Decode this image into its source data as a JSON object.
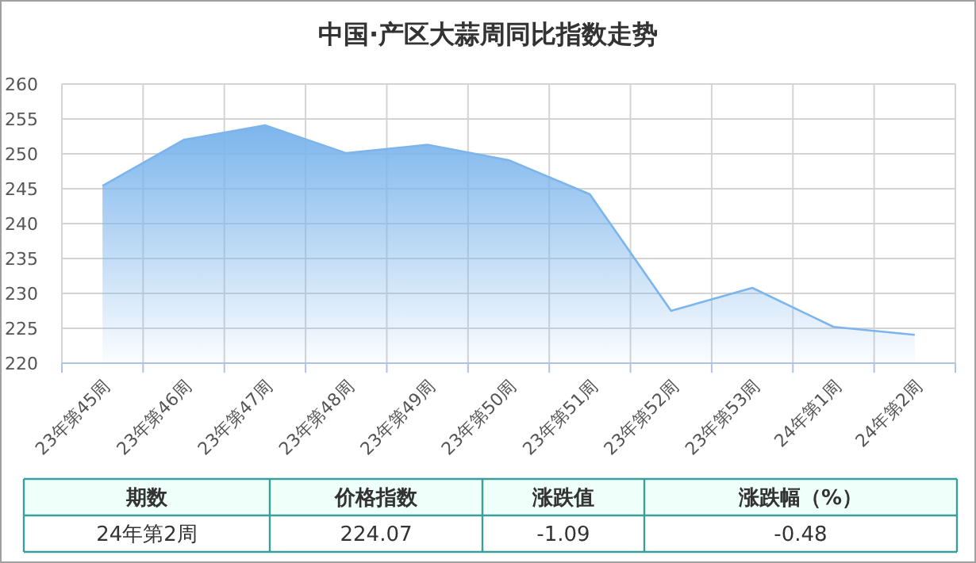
{
  "chart_data": {
    "type": "area",
    "title": "中国·产区大蒜周同比指数走势",
    "categories": [
      "23年第45周",
      "23年第46周",
      "23年第47周",
      "23年第48周",
      "23年第49周",
      "23年第50周",
      "23年第51周",
      "23年第52周",
      "23年第53周",
      "24年第1周",
      "24年第2周"
    ],
    "values": [
      245.4,
      252.0,
      254.1,
      250.1,
      251.3,
      249.1,
      244.2,
      227.5,
      230.8,
      225.2,
      224.07
    ],
    "color": "#7cb5ec",
    "ylim": [
      220,
      260
    ],
    "yticks": [
      220,
      225,
      230,
      235,
      240,
      245,
      250,
      255,
      260
    ],
    "grid": true,
    "annotations": [
      "期数",
      "价格指数",
      "涨跌值",
      "涨跌幅（%）",
      "24年第2周",
      "224.07",
      "-1.09",
      "-0.48"
    ]
  }
}
